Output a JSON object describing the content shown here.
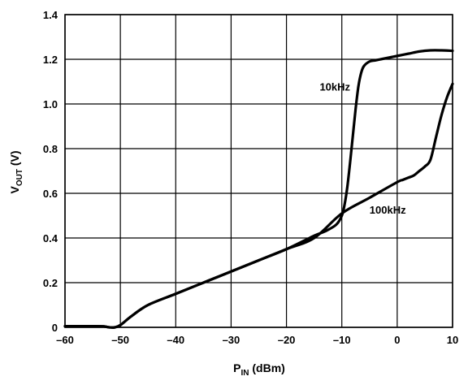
{
  "chart_data": {
    "type": "line",
    "xlabel_main": "P",
    "xlabel_sub": "IN",
    "xlabel_unit": " (dBm)",
    "ylabel_main": "V",
    "ylabel_sub": "OUT",
    "ylabel_unit": " (V)",
    "xlim": [
      -60,
      10
    ],
    "ylim": [
      0,
      1.4
    ],
    "x_ticks": [
      -60,
      -50,
      -40,
      -30,
      -20,
      -10,
      0,
      10
    ],
    "x_tick_labels": [
      "–60",
      "–50",
      "–40",
      "–30",
      "–20",
      "–10",
      "0",
      "10"
    ],
    "y_ticks": [
      0,
      0.2,
      0.4,
      0.6,
      0.8,
      1.0,
      1.2,
      1.4
    ],
    "y_tick_labels": [
      "0",
      "0.2",
      "0.4",
      "0.6",
      "0.8",
      "1.0",
      "1.2",
      "1.4"
    ],
    "grid": true,
    "series": [
      {
        "name": "10kHz",
        "x": [
          -60,
          -55,
          -53,
          -52,
          -51,
          -50,
          -48,
          -45,
          -40,
          -35,
          -30,
          -25,
          -20,
          -15,
          -13,
          -11,
          -10,
          -9.5,
          -9,
          -8.5,
          -8,
          -7.5,
          -7,
          -6.5,
          -6,
          -5,
          -4,
          -3,
          -2,
          -1,
          0,
          2,
          4,
          6,
          8,
          10
        ],
        "y": [
          0.005,
          0.005,
          0.004,
          0.0,
          0.0,
          0.01,
          0.05,
          0.1,
          0.15,
          0.2,
          0.25,
          0.3,
          0.35,
          0.41,
          0.43,
          0.46,
          0.5,
          0.55,
          0.63,
          0.74,
          0.86,
          0.98,
          1.08,
          1.14,
          1.17,
          1.19,
          1.195,
          1.2,
          1.205,
          1.21,
          1.215,
          1.225,
          1.235,
          1.24,
          1.24,
          1.238
        ]
      },
      {
        "name": "100kHz",
        "x": [
          -60,
          -55,
          -53,
          -52,
          -51,
          -50,
          -48,
          -45,
          -40,
          -35,
          -30,
          -25,
          -20,
          -15,
          -10,
          -5,
          0,
          1,
          2,
          3,
          4,
          5,
          6,
          7,
          8,
          9,
          10
        ],
        "y": [
          0.005,
          0.005,
          0.004,
          0.0,
          0.0,
          0.01,
          0.05,
          0.1,
          0.15,
          0.2,
          0.25,
          0.3,
          0.35,
          0.4,
          0.51,
          0.58,
          0.65,
          0.66,
          0.67,
          0.68,
          0.7,
          0.72,
          0.75,
          0.85,
          0.95,
          1.03,
          1.09
        ]
      }
    ],
    "annotations": [
      {
        "text": "10kHz",
        "x": -14,
        "y": 1.06
      },
      {
        "text": "100kHz",
        "x": -5,
        "y": 0.51
      }
    ]
  }
}
